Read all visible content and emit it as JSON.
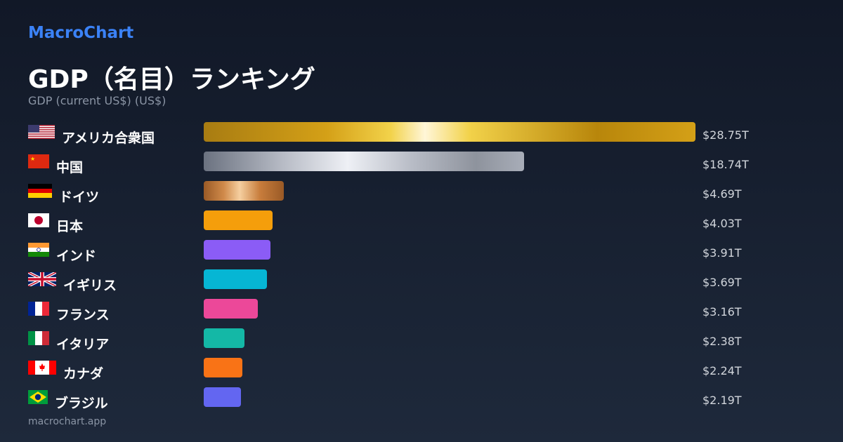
{
  "brand": "MacroChart",
  "footer": "macrochart.app",
  "chart_data": {
    "type": "bar",
    "orientation": "horizontal",
    "title": "GDP（名目）ランキング",
    "subtitle": "GDP (current US$) (US$)",
    "unit": "trillion US$",
    "xlim": [
      0,
      28.75
    ],
    "categories": [
      "アメリカ合衆国",
      "中国",
      "ドイツ",
      "日本",
      "インド",
      "イギリス",
      "フランス",
      "イタリア",
      "カナダ",
      "ブラジル"
    ],
    "values": [
      28.75,
      18.74,
      4.69,
      4.03,
      3.91,
      3.69,
      3.16,
      2.38,
      2.24,
      2.19
    ],
    "value_labels": [
      "$28.75T",
      "$18.74T",
      "$4.69T",
      "$4.03T",
      "$3.91T",
      "$3.69T",
      "$3.16T",
      "$2.38T",
      "$2.24T",
      "$2.19T"
    ],
    "flags": [
      "us-flag",
      "cn-flag",
      "de-flag",
      "jp-flag",
      "in-flag",
      "gb-flag",
      "fr-flag",
      "it-flag",
      "ca-flag",
      "br-flag"
    ],
    "colors": [
      "gold-gradient",
      "silver-gradient",
      "bronze-gradient",
      "#f59e0b",
      "#8b5cf6",
      "#06b6d4",
      "#ec4899",
      "#14b8a6",
      "#f97316",
      "#6366f1"
    ]
  }
}
